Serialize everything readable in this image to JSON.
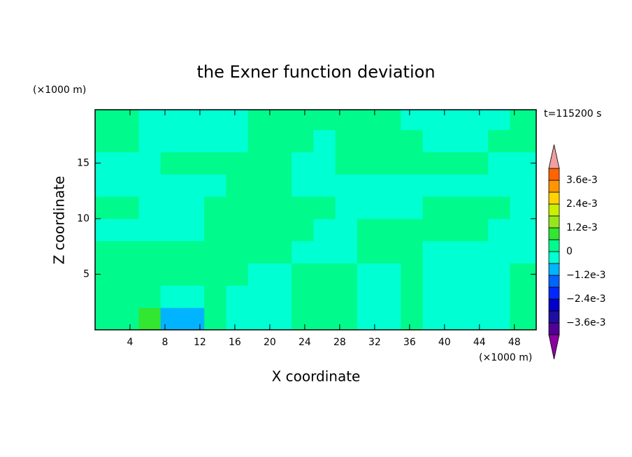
{
  "chart_data": {
    "type": "contour",
    "title": "the Exner function deviation",
    "x_label": "X coordinate",
    "y_label": "Z coordinate",
    "x_unit": "(×1000 m)",
    "y_unit": "(×1000 m)",
    "annotation": "t=115200 s",
    "xlim": [
      0,
      50.5
    ],
    "ylim": [
      0,
      19.8
    ],
    "xticks": [
      4,
      8,
      12,
      16,
      20,
      24,
      28,
      32,
      36,
      40,
      44,
      48
    ],
    "yticks": [
      5,
      10,
      15
    ],
    "x": [
      1.25,
      3.75,
      6.25,
      8.75,
      11.25,
      13.75,
      16.25,
      18.75,
      21.25,
      23.75,
      26.25,
      28.75,
      31.25,
      33.75,
      36.25,
      38.75,
      41.25,
      43.75,
      46.25,
      48.75
    ],
    "y": [
      1,
      3,
      5,
      7,
      9,
      11,
      13,
      15,
      17,
      19
    ],
    "z": [
      [
        0.0003,
        0.0003,
        0.0009,
        -0.0009,
        -0.0009,
        0.0003,
        -0.0003,
        -0.0003,
        -0.0003,
        0.0003,
        0.0003,
        0.0003,
        -0.0003,
        -0.0003,
        0.0003,
        -0.0003,
        -0.0003,
        -0.0003,
        -0.0003,
        0.0003
      ],
      [
        0.0003,
        0.0003,
        0.0003,
        -0.0003,
        -0.0003,
        0.0003,
        -0.0003,
        -0.0003,
        -0.0003,
        0.0003,
        0.0003,
        0.0003,
        -0.0003,
        -0.0003,
        0.0003,
        -0.0003,
        -0.0003,
        -0.0003,
        -0.0003,
        0.0003
      ],
      [
        0.0003,
        0.0003,
        0.0003,
        0.0003,
        0.0003,
        0.0003,
        0.0003,
        -0.0003,
        -0.0003,
        0.0003,
        0.0003,
        0.0003,
        -0.0003,
        -0.0003,
        0.0003,
        -0.0003,
        -0.0003,
        -0.0003,
        -0.0003,
        0.0003
      ],
      [
        0.0003,
        0.0003,
        0.0003,
        0.0003,
        0.0003,
        0.0003,
        0.0003,
        0.0003,
        0.0003,
        -0.0003,
        -0.0003,
        -0.0003,
        0.0003,
        0.0003,
        0.0003,
        -0.0003,
        -0.0003,
        -0.0003,
        -0.0003,
        -0.0003
      ],
      [
        -0.0003,
        -0.0003,
        -0.0003,
        -0.0003,
        -0.0003,
        0.0003,
        0.0003,
        0.0003,
        0.0003,
        0.0003,
        -0.0003,
        -0.0003,
        0.0003,
        0.0003,
        0.0003,
        0.0003,
        0.0003,
        0.0003,
        -0.0003,
        -0.0003
      ],
      [
        0.0003,
        0.0003,
        -0.0003,
        -0.0003,
        -0.0003,
        0.0003,
        0.0003,
        0.0003,
        0.0003,
        0.0003,
        0.0003,
        -0.0003,
        -0.0003,
        -0.0003,
        -0.0003,
        0.0003,
        0.0003,
        0.0003,
        0.0003,
        -0.0003
      ],
      [
        -0.0003,
        -0.0003,
        -0.0003,
        -0.0003,
        -0.0003,
        -0.0003,
        0.0003,
        0.0003,
        0.0003,
        -0.0003,
        -0.0003,
        -0.0003,
        -0.0003,
        -0.0003,
        -0.0003,
        -0.0003,
        -0.0003,
        -0.0003,
        -0.0003,
        -0.0003
      ],
      [
        -0.0003,
        -0.0003,
        -0.0003,
        0.0003,
        0.0003,
        0.0003,
        0.0003,
        0.0003,
        0.0003,
        -0.0003,
        -0.0003,
        0.0003,
        0.0003,
        0.0003,
        0.0003,
        0.0003,
        0.0003,
        0.0003,
        -0.0003,
        -0.0003
      ],
      [
        0.0003,
        0.0003,
        -0.0003,
        -0.0003,
        -0.0003,
        -0.0003,
        -0.0003,
        0.0003,
        0.0003,
        0.0003,
        -0.0003,
        0.0003,
        0.0003,
        0.0003,
        0.0003,
        -0.0003,
        -0.0003,
        -0.0003,
        0.0003,
        0.0003
      ],
      [
        0.0003,
        0.0003,
        -0.0003,
        -0.0003,
        -0.0003,
        -0.0003,
        -0.0003,
        0.0003,
        0.0003,
        0.0003,
        0.0003,
        0.0003,
        0.0003,
        0.0003,
        -0.0003,
        -0.0003,
        -0.0003,
        -0.0003,
        -0.0003,
        0.0003
      ]
    ],
    "colorbar": {
      "levels": [
        -0.0042,
        -0.0036,
        -0.003,
        -0.0024,
        -0.0018,
        -0.0012,
        -0.0006,
        0,
        0.0006,
        0.0012,
        0.0018,
        0.0024,
        0.003,
        0.0036,
        0.0042
      ],
      "colors": [
        "#500096",
        "#1e0fa0",
        "#0000c8",
        "#0028ff",
        "#0064ff",
        "#00b4ff",
        "#00ffd2",
        "#00fa8c",
        "#32e632",
        "#96e61e",
        "#c8f000",
        "#ffd200",
        "#ff9600",
        "#ff6400",
        "#ff1e1e"
      ],
      "under_color": "#8c00a0",
      "over_color": "#f0a0a0",
      "ticks": [
        {
          "value": 0.0036,
          "label": "3.6e-3"
        },
        {
          "value": 0.0024,
          "label": "2.4e-3"
        },
        {
          "value": 0.0012,
          "label": "1.2e-3"
        },
        0,
        {
          "value": -0.0012,
          "label": "−1.2e-3"
        },
        {
          "value": -0.0024,
          "label": "−2.4e-3"
        },
        {
          "value": -0.0036,
          "label": "−3.6e-3"
        }
      ]
    }
  }
}
